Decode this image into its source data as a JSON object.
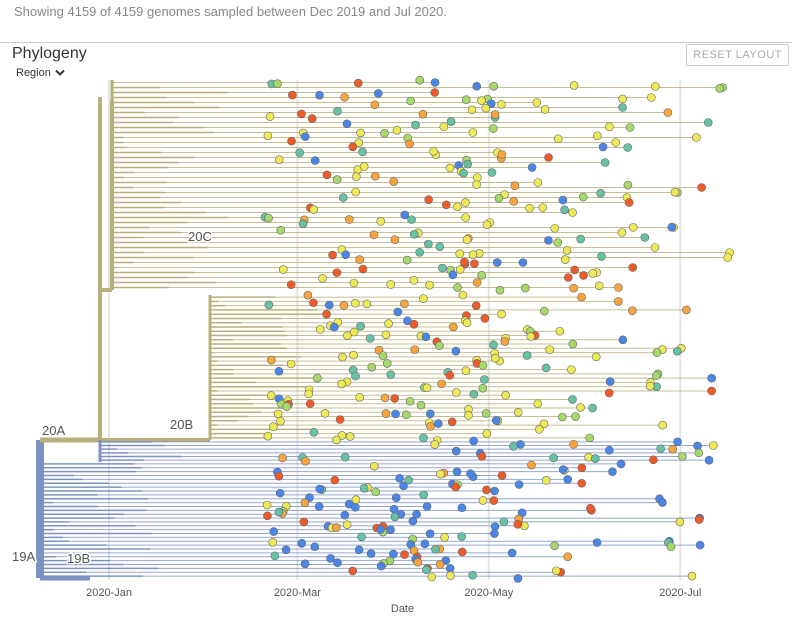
{
  "summary_text": "Showing 4159 of 4159 genomes sampled between Dec 2019 and Jul 2020.",
  "panel": {
    "title": "Phylogeny",
    "color_by": "Region",
    "reset_label": "RESET LAYOUT"
  },
  "colors": {
    "clade_20A": "#b8b07a",
    "clade_19A": "#7b93c4",
    "tip_blue": "#4a86e8",
    "tip_yellow": "#eeea55",
    "tip_green": "#a6d96a",
    "tip_orange": "#f9a43c",
    "tip_red": "#f05a28",
    "tip_teal": "#66c2a5",
    "grid": "#e4e4e4"
  },
  "chart_data": {
    "type": "scatter",
    "description_type": "time-scaled phylogenetic tree",
    "xlabel": "Date",
    "x_ticks": [
      "2020-Jan",
      "2020-Mar",
      "2020-May",
      "2020-Jul"
    ],
    "x_range": [
      "2019-12-10",
      "2020-07-28"
    ],
    "clade_labels": [
      "20A",
      "20C",
      "20B",
      "19A",
      "19B"
    ],
    "genomes_shown": 4159,
    "genomes_total": 4159
  }
}
